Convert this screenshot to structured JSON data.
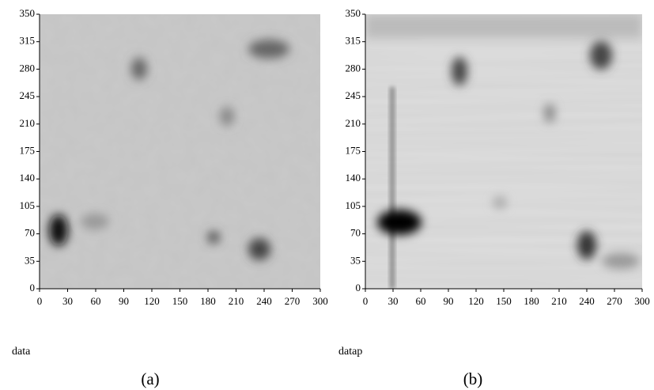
{
  "chart_data": [
    {
      "type": "heatmap",
      "xlim": [
        0,
        300
      ],
      "ylim": [
        0,
        350
      ],
      "xticks": [
        0,
        30,
        60,
        90,
        120,
        150,
        180,
        210,
        240,
        270,
        300
      ],
      "yticks": [
        0,
        35,
        70,
        105,
        140,
        175,
        210,
        245,
        280,
        315,
        350
      ],
      "xlabel": "data",
      "caption": "(a)"
    },
    {
      "type": "heatmap",
      "xlim": [
        0,
        300
      ],
      "ylim": [
        0,
        350
      ],
      "xticks": [
        0,
        30,
        60,
        90,
        120,
        150,
        180,
        210,
        240,
        270,
        300
      ],
      "yticks": [
        0,
        35,
        70,
        105,
        140,
        175,
        210,
        245,
        280,
        315,
        350
      ],
      "xlabel": "datap",
      "caption": "(b)"
    }
  ]
}
